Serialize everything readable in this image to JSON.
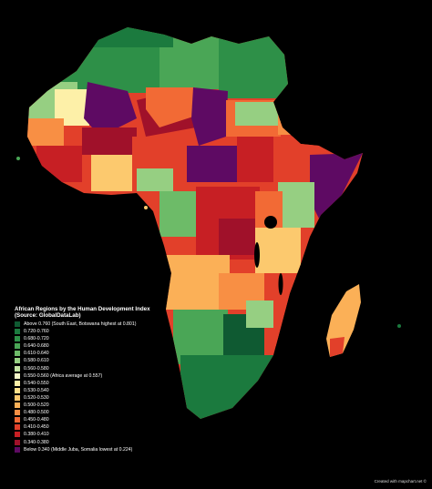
{
  "legend": {
    "title": "African Regions by the Human Development Index (Source: GlobalDataLab)",
    "items": [
      {
        "label": "Above 0.760 (South East, Botswana highest at 0.801)",
        "color": "#0f5a32"
      },
      {
        "label": "0.720-0.760",
        "color": "#1b7a3e"
      },
      {
        "label": "0.680-0.720",
        "color": "#2e9048"
      },
      {
        "label": "0.640-0.680",
        "color": "#4aa656"
      },
      {
        "label": "0.610-0.640",
        "color": "#6dbb68"
      },
      {
        "label": "0.580-0.610",
        "color": "#96cf82"
      },
      {
        "label": "0.560-0.580",
        "color": "#c4e4a4"
      },
      {
        "label": "0.550-0.560 (Africa average at 0.557)",
        "color": "#f5f7c8"
      },
      {
        "label": "0.540-0.550",
        "color": "#fdf0a8"
      },
      {
        "label": "0.530-0.540",
        "color": "#fde08a"
      },
      {
        "label": "0.520-0.530",
        "color": "#fcc96e"
      },
      {
        "label": "0.500-0.520",
        "color": "#fbb057"
      },
      {
        "label": "0.480-0.500",
        "color": "#f88f44"
      },
      {
        "label": "0.450-0.480",
        "color": "#f26a35"
      },
      {
        "label": "0.410-0.450",
        "color": "#e2402a"
      },
      {
        "label": "0.380-0.410",
        "color": "#c71f24"
      },
      {
        "label": "0.340-0.380",
        "color": "#a0112a"
      },
      {
        "label": "Below 0.340 (Middle Juba, Somalia lowest at 0.224)",
        "color": "#5e0a63"
      }
    ]
  },
  "credit": "Created with mapchart.net ©"
}
